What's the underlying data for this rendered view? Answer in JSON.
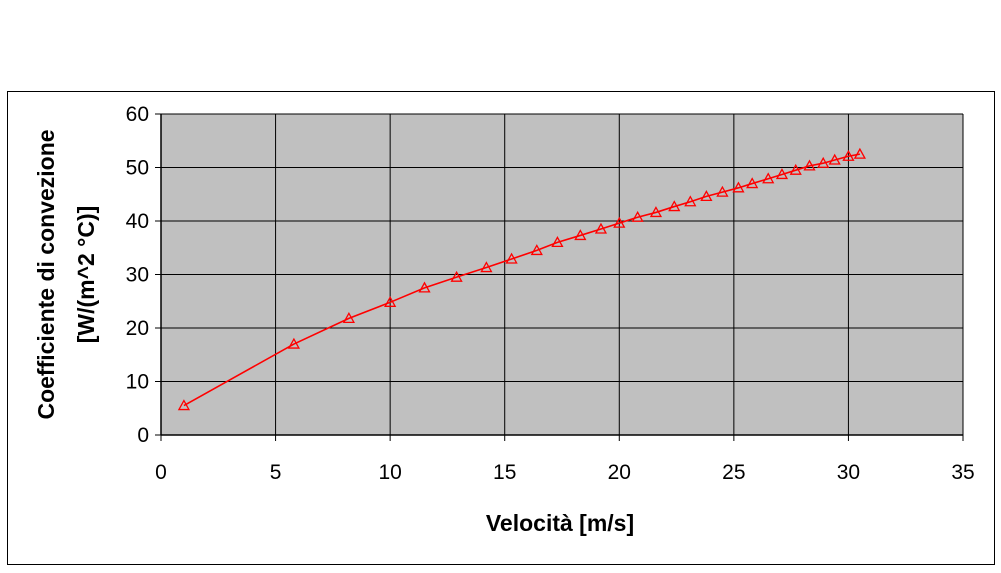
{
  "chart_data": {
    "type": "line",
    "xlabel": "Velocità [m/s]",
    "ylabel": [
      "Coefficiente di convezione",
      "[W/(m^2 °C)]"
    ],
    "xlim": [
      0,
      35
    ],
    "ylim": [
      0,
      60
    ],
    "xticks": [
      0,
      5,
      10,
      15,
      20,
      25,
      30,
      35
    ],
    "yticks": [
      0,
      10,
      20,
      30,
      40,
      50,
      60
    ],
    "grid": true,
    "legend": "none",
    "colors": {
      "plot_background": "#c0c0c0",
      "series": "#ff0000",
      "grid": "#000000"
    },
    "series": [
      {
        "marker": "triangle-open",
        "points": [
          [
            1.0,
            5.5
          ],
          [
            5.8,
            17.0
          ],
          [
            8.2,
            21.8
          ],
          [
            10.0,
            24.8
          ],
          [
            11.5,
            27.5
          ],
          [
            12.9,
            29.5
          ],
          [
            14.2,
            31.3
          ],
          [
            15.3,
            32.9
          ],
          [
            16.4,
            34.5
          ],
          [
            17.3,
            36.0
          ],
          [
            18.3,
            37.3
          ],
          [
            19.2,
            38.5
          ],
          [
            20.0,
            39.6
          ],
          [
            20.8,
            40.7
          ],
          [
            21.6,
            41.6
          ],
          [
            22.4,
            42.7
          ],
          [
            23.1,
            43.6
          ],
          [
            23.8,
            44.6
          ],
          [
            24.5,
            45.4
          ],
          [
            25.2,
            46.2
          ],
          [
            25.8,
            47.0
          ],
          [
            26.5,
            47.9
          ],
          [
            27.1,
            48.7
          ],
          [
            27.7,
            49.5
          ],
          [
            28.3,
            50.3
          ],
          [
            28.9,
            50.8
          ],
          [
            29.4,
            51.4
          ],
          [
            30.0,
            52.1
          ],
          [
            30.5,
            52.5
          ]
        ]
      }
    ]
  }
}
